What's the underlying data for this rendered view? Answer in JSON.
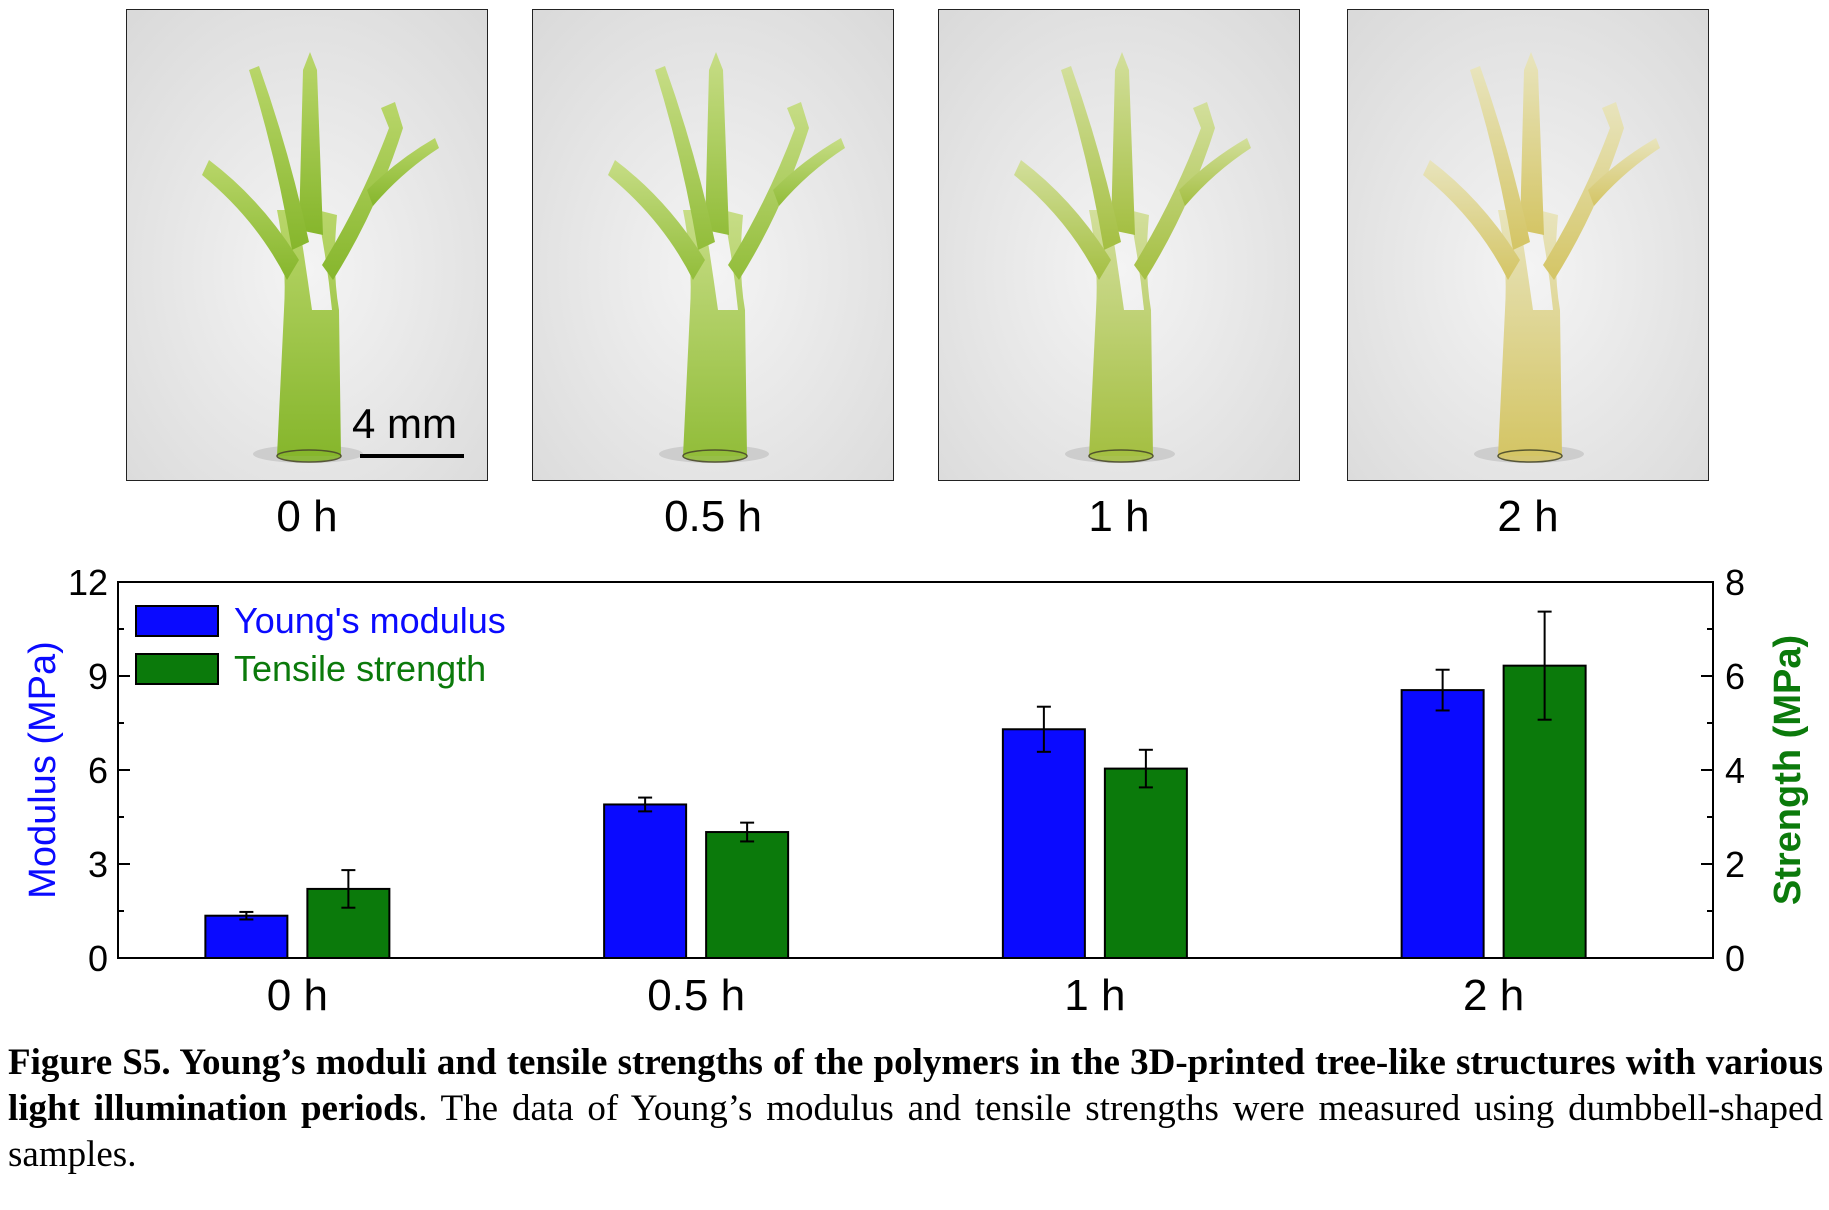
{
  "photos": [
    {
      "label": "0 h",
      "tint": "#86b62c",
      "tip": "#b9d66a"
    },
    {
      "label": "0.5 h",
      "tint": "#92bd3a",
      "tip": "#c7dd86"
    },
    {
      "label": "1 h",
      "tint": "#a4bf42",
      "tip": "#d3df9c"
    },
    {
      "label": "2 h",
      "tint": "#d4c565",
      "tip": "#e8e4bd"
    }
  ],
  "scale_bar": {
    "label": "4 mm"
  },
  "chart_data": {
    "type": "bar",
    "categories": [
      "0 h",
      "0.5 h",
      "1 h",
      "2 h"
    ],
    "series": [
      {
        "name": "Young's modulus",
        "axis": "left",
        "color": "#0a0aff",
        "values": [
          1.35,
          4.9,
          7.3,
          8.55
        ],
        "errors": [
          0.12,
          0.22,
          0.72,
          0.65
        ]
      },
      {
        "name": "Tensile strength",
        "axis": "right",
        "color": "#0b7a0b",
        "values": [
          1.47,
          2.68,
          4.03,
          6.22
        ],
        "errors": [
          0.4,
          0.2,
          0.4,
          1.15
        ]
      }
    ],
    "ylabel": "Modulus (MPa)",
    "y2label": "Strength (MPa)",
    "ylim": [
      0,
      12
    ],
    "y2lim": [
      0,
      8
    ],
    "yticks": [
      0,
      3,
      6,
      9,
      12
    ],
    "y2ticks": [
      0,
      2,
      4,
      6,
      8
    ],
    "legend_position": "top-left",
    "ylabel_color": "#0a0aff",
    "y2label_color": "#0b7a0b"
  },
  "caption": {
    "bold": "Figure S5. Young’s moduli and tensile strengths of the polymers in the 3D-printed tree-like structures with various light illumination periods",
    "normal": ". The data of Young’s modulus and tensile strengths were measured using dumbbell-shaped samples."
  }
}
